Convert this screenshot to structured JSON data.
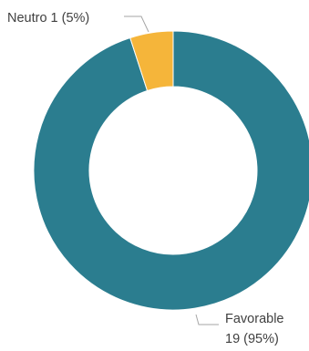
{
  "chart_data": {
    "type": "pie",
    "variant": "donut",
    "title": "",
    "legend": "none",
    "slices": [
      {
        "label": "Favorable",
        "value": 19,
        "percent_text": "(95%)",
        "color": "#2b7d8f",
        "label_lines": [
          "Favorable",
          "19 (95%)"
        ]
      },
      {
        "label": "Neutro",
        "value": 1,
        "percent_text": "(5%)",
        "color": "#f5b53a",
        "label_lines": [
          "Neutro 1 (5%)"
        ]
      }
    ]
  }
}
